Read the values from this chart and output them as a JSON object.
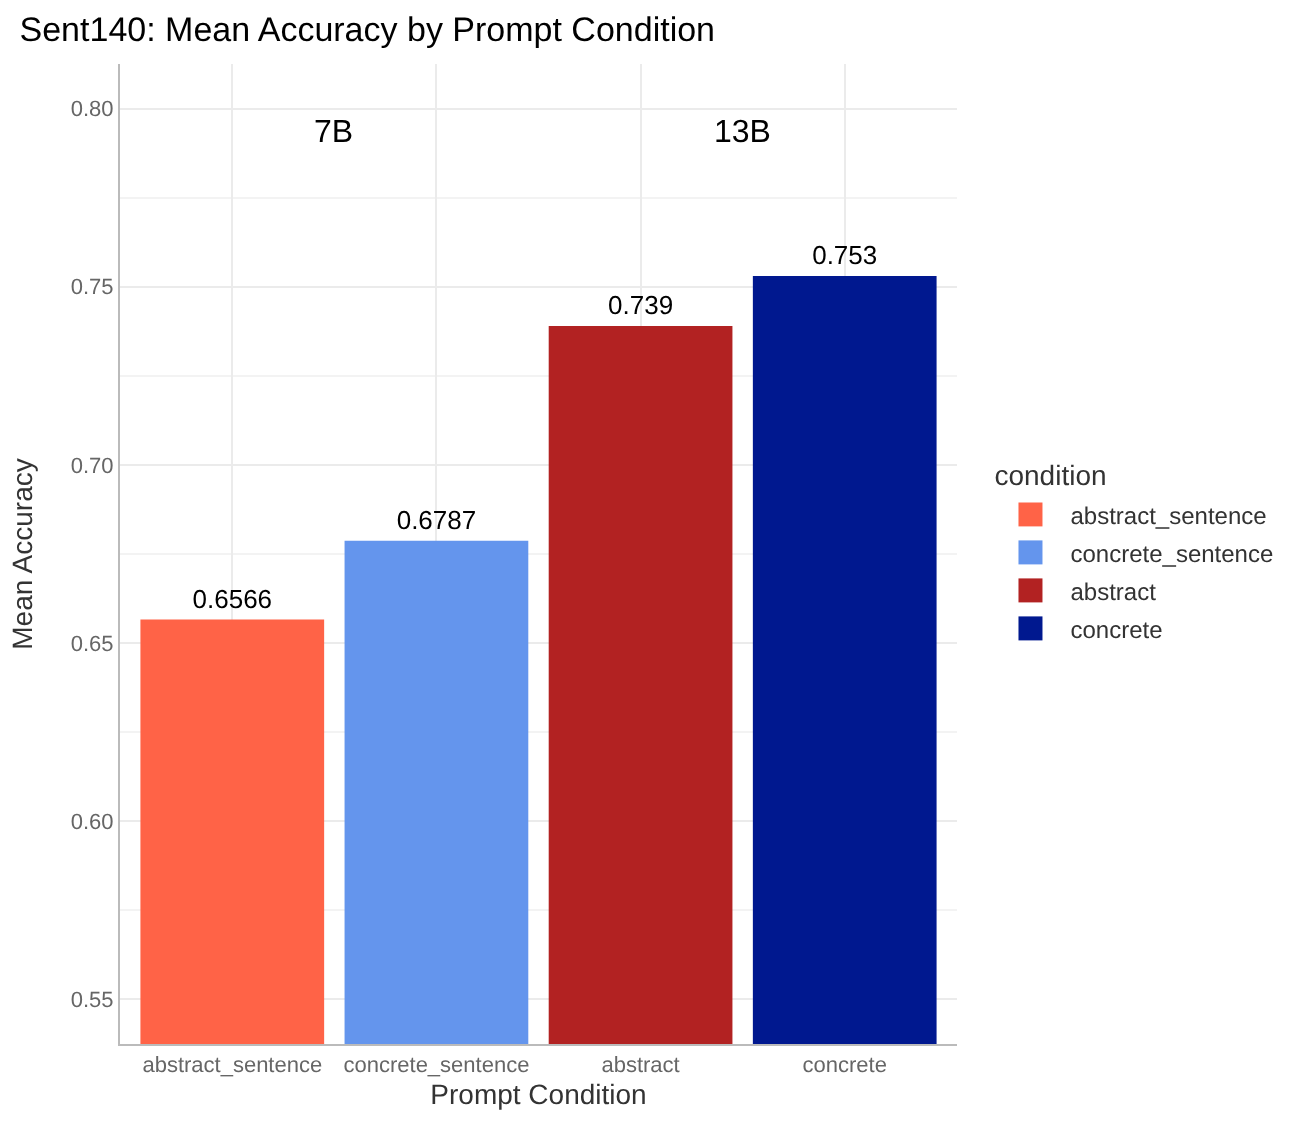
{
  "chart_data": {
    "type": "bar",
    "title": "Sent140: Mean Accuracy by Prompt Condition",
    "xlabel": "Prompt Condition",
    "ylabel": "Mean Accuracy",
    "legend_title": "condition",
    "categories": [
      "abstract_sentence",
      "concrete_sentence",
      "abstract",
      "concrete"
    ],
    "series": [
      {
        "name": "abstract_sentence",
        "color": "#ff6347",
        "values": [
          0.6566,
          null,
          null,
          null
        ]
      },
      {
        "name": "concrete_sentence",
        "color": "#6495ed",
        "values": [
          null,
          0.6787,
          null,
          null
        ]
      },
      {
        "name": "abstract",
        "color": "#b22222",
        "values": [
          null,
          null,
          0.739,
          null
        ]
      },
      {
        "name": "concrete",
        "color": "#00188f",
        "values": [
          null,
          null,
          null,
          0.753
        ]
      }
    ],
    "data_labels": true,
    "ylim": [
      0.5375,
      0.8125
    ],
    "yticks": [
      {
        "value": 0.55,
        "label": "0.55"
      },
      {
        "value": 0.6,
        "label": "0.60"
      },
      {
        "value": 0.65,
        "label": "0.65"
      },
      {
        "value": 0.7,
        "label": "0.70"
      },
      {
        "value": 0.75,
        "label": "0.75"
      },
      {
        "value": 0.8,
        "label": "0.80"
      }
    ],
    "annotations": [
      "7B",
      "13B"
    ],
    "grid": true,
    "legend": "right"
  }
}
